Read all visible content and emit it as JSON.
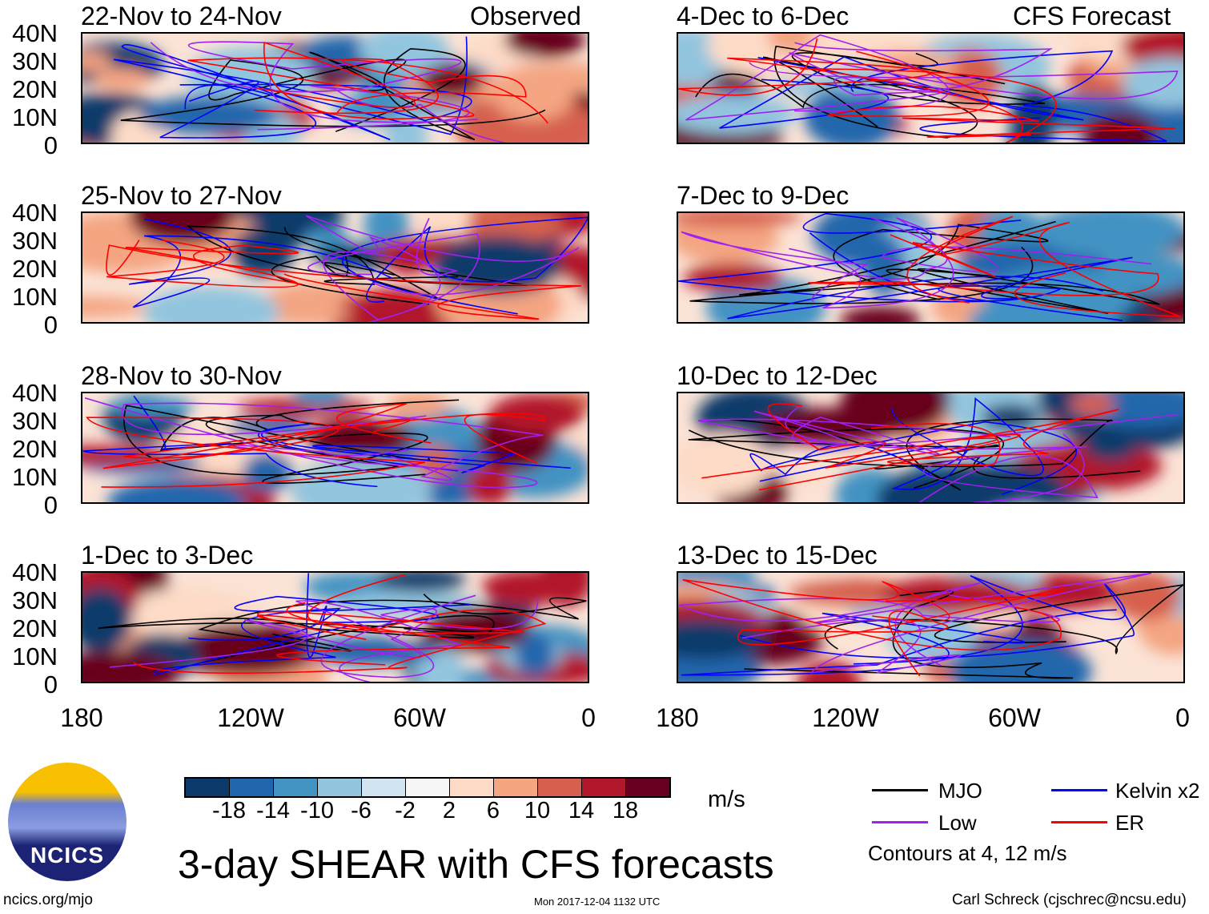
{
  "header": {
    "left_label": "Observed",
    "right_label": "CFS Forecast"
  },
  "panels_observed": [
    {
      "title": "22-Nov to 24-Nov"
    },
    {
      "title": "25-Nov to 27-Nov"
    },
    {
      "title": "28-Nov to 30-Nov"
    },
    {
      "title": "1-Dec to 3-Dec"
    }
  ],
  "panels_forecast": [
    {
      "title": "4-Dec to 6-Dec"
    },
    {
      "title": "7-Dec to 9-Dec"
    },
    {
      "title": "10-Dec to 12-Dec"
    },
    {
      "title": "13-Dec to 15-Dec"
    }
  ],
  "y_ticks": [
    "40N",
    "30N",
    "20N",
    "10N",
    "0"
  ],
  "x_ticks": [
    "180",
    "120W",
    "60W",
    "0"
  ],
  "colorbar": {
    "colors": [
      "#0b3a6b",
      "#2166ac",
      "#4393c3",
      "#92c5de",
      "#d1e5f0",
      "#f7f7f7",
      "#fddbc7",
      "#f4a582",
      "#d6604d",
      "#b2182b",
      "#67001f"
    ],
    "labels": [
      "-18",
      "-14",
      "-10",
      "-6",
      "-2",
      "2",
      "6",
      "10",
      "14",
      "18"
    ],
    "units": "m/s"
  },
  "title": "3-day SHEAR with CFS forecasts",
  "legend": {
    "items": [
      {
        "label": "MJO",
        "color": "#000000"
      },
      {
        "label": "Kelvin x2",
        "color": "#0000ff"
      },
      {
        "label": "Low",
        "color": "#a020f0"
      },
      {
        "label": "ER",
        "color": "#ff0000"
      }
    ],
    "note": "Contours at 4, 12 m/s"
  },
  "logo": {
    "text": "NCICS"
  },
  "footer": {
    "url": "ncics.org/mjo",
    "timestamp": "Mon 2017-12-04 1132 UTC",
    "credit": "Carl Schreck (cjschrec@ncsu.edu)"
  }
}
